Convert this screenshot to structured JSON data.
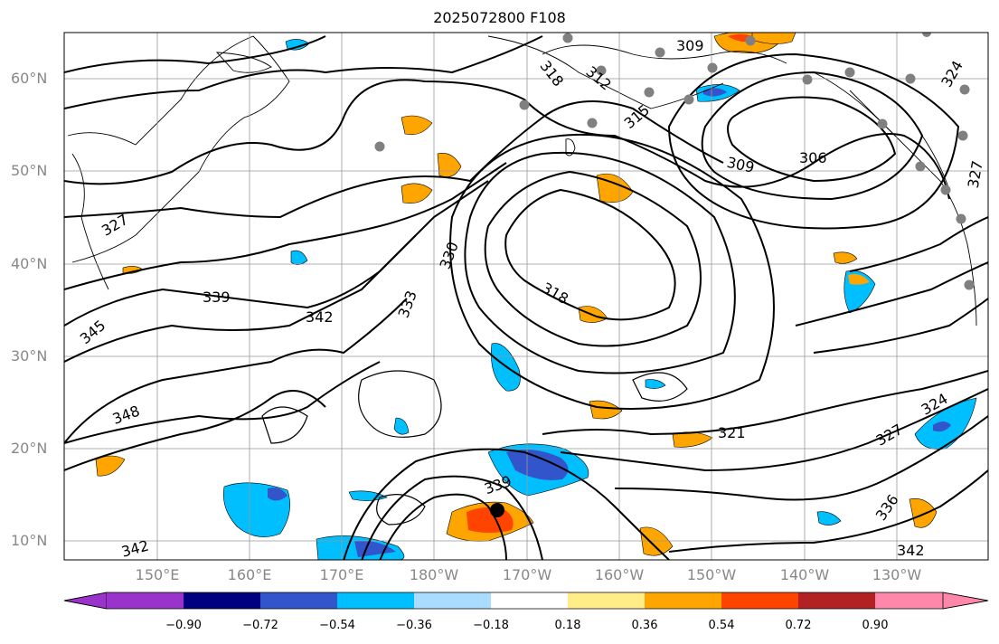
{
  "title": "2025072800 F108",
  "lat_labels": [
    "60°N",
    "50°N",
    "40°N",
    "30°N",
    "20°N",
    "10°N"
  ],
  "lon_labels": [
    "150°E",
    "160°E",
    "170°E",
    "180°W",
    "170°W",
    "160°W",
    "150°W",
    "140°W",
    "130°W"
  ],
  "contour_labels": [
    "309",
    "312",
    "318",
    "315",
    "324",
    "306",
    "309",
    "327",
    "327",
    "330",
    "333",
    "339",
    "342",
    "345",
    "318",
    "348",
    "321",
    "327",
    "324",
    "336",
    "339",
    "342",
    "342"
  ],
  "colorbar": {
    "ticks": [
      "−0.90",
      "−0.72",
      "−0.54",
      "−0.36",
      "−0.18",
      "0.18",
      "0.36",
      "0.54",
      "0.72",
      "0.90"
    ],
    "colors": [
      "#9933cc",
      "#000080",
      "#3355cc",
      "#00bfff",
      "#aadcff",
      "#ffffff",
      "#ffee88",
      "#ffa500",
      "#ff4400",
      "#b22222",
      "#ff88aa"
    ]
  },
  "colors": {
    "land_outline": "#000000",
    "contour": "#000000",
    "grid": "#999999",
    "station_marker": "#808080"
  }
}
